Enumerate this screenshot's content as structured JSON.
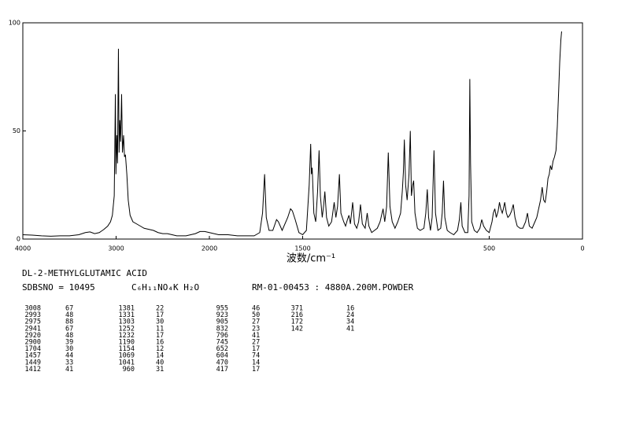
{
  "chart_data": {
    "type": "line",
    "color": "#000000",
    "xlabel": "波数/cm⁻¹",
    "xlim": [
      4000,
      0
    ],
    "x_scale_break": 2000,
    "xticks": [
      4000,
      3000,
      2000,
      1500,
      500,
      0
    ],
    "ylim": [
      0,
      100
    ],
    "yticks": [
      0,
      50,
      100
    ],
    "x": [
      4000,
      3900,
      3800,
      3700,
      3600,
      3500,
      3400,
      3330,
      3280,
      3230,
      3180,
      3130,
      3090,
      3060,
      3040,
      3020,
      3012,
      3008,
      3002,
      2993,
      2985,
      2975,
      2968,
      2960,
      2952,
      2941,
      2932,
      2920,
      2910,
      2900,
      2885,
      2870,
      2850,
      2820,
      2780,
      2740,
      2700,
      2650,
      2600,
      2550,
      2500,
      2450,
      2400,
      2350,
      2300,
      2250,
      2200,
      2150,
      2100,
      2050,
      2000,
      1950,
      1900,
      1850,
      1800,
      1760,
      1730,
      1715,
      1704,
      1695,
      1680,
      1660,
      1640,
      1630,
      1610,
      1580,
      1565,
      1555,
      1540,
      1520,
      1500,
      1480,
      1465,
      1457,
      1453,
      1449,
      1440,
      1430,
      1420,
      1412,
      1405,
      1395,
      1387,
      1381,
      1372,
      1360,
      1345,
      1331,
      1322,
      1313,
      1303,
      1295,
      1280,
      1270,
      1260,
      1252,
      1244,
      1232,
      1222,
      1210,
      1200,
      1190,
      1180,
      1165,
      1154,
      1145,
      1130,
      1115,
      1100,
      1085,
      1069,
      1060,
      1050,
      1041,
      1032,
      1020,
      1005,
      990,
      975,
      966,
      960,
      955,
      948,
      940,
      930,
      923,
      917,
      910,
      905,
      898,
      885,
      870,
      850,
      840,
      832,
      825,
      815,
      806,
      796,
      788,
      775,
      760,
      752,
      745,
      738,
      725,
      710,
      690,
      670,
      660,
      652,
      645,
      630,
      615,
      608,
      604,
      600,
      594,
      580,
      565,
      550,
      540,
      530,
      515,
      500,
      485,
      478,
      470,
      462,
      452,
      445,
      438,
      430,
      424,
      417,
      408,
      400,
      390,
      380,
      371,
      362,
      350,
      335,
      320,
      305,
      295,
      285,
      270,
      255,
      245,
      235,
      225,
      216,
      208,
      200,
      192,
      185,
      178,
      172,
      165,
      158,
      150,
      142,
      135,
      128,
      122,
      116,
      112
    ],
    "values": [
      2,
      1.8,
      1.5,
      1.3,
      1.5,
      1.5,
      2,
      3,
      3.3,
      2.5,
      3,
      4.5,
      6,
      8,
      11,
      20,
      50,
      67,
      30,
      48,
      35,
      88,
      40,
      55,
      45,
      67,
      40,
      48,
      38,
      39,
      30,
      18,
      11,
      8,
      7,
      6,
      5,
      4.5,
      4,
      3,
      2.5,
      2.5,
      2,
      1.5,
      1.5,
      1.5,
      2,
      2.5,
      3.5,
      3.5,
      3,
      2,
      2,
      1.5,
      1.5,
      1.5,
      3,
      12,
      30,
      10,
      4,
      4,
      9,
      8,
      4,
      10,
      14,
      13,
      9,
      3,
      2,
      4,
      25,
      44,
      30,
      33,
      12,
      8,
      22,
      41,
      20,
      10,
      16,
      22,
      10,
      6,
      8,
      17,
      10,
      15,
      30,
      12,
      8,
      6,
      9,
      11,
      7,
      17,
      7,
      5,
      8,
      16,
      7,
      5,
      12,
      6,
      3,
      4,
      5,
      8,
      14,
      8,
      15,
      40,
      15,
      8,
      5,
      8,
      12,
      22,
      31,
      46,
      25,
      18,
      30,
      50,
      20,
      25,
      27,
      12,
      5,
      4,
      5,
      12,
      23,
      10,
      4,
      10,
      41,
      12,
      4,
      5,
      12,
      27,
      10,
      4,
      3,
      2,
      4,
      9,
      17,
      6,
      3,
      3,
      20,
      74,
      35,
      8,
      4,
      3,
      5,
      9,
      6,
      4,
      3,
      8,
      12,
      14,
      10,
      13,
      17,
      14,
      12,
      14,
      17,
      12,
      10,
      11,
      13,
      16,
      10,
      6,
      5,
      5,
      8,
      12,
      6,
      5,
      8,
      10,
      14,
      18,
      24,
      18,
      17,
      22,
      28,
      30,
      34,
      32,
      36,
      38,
      41,
      52,
      68,
      82,
      92,
      96
    ]
  },
  "header": {
    "compound": "DL-2-METHYLGLUTAMIC ACID",
    "sdbsno": "SDBSNO = 10495",
    "formula": "C₆H₁₁NO₄K H₂O",
    "sample": "RM-01-00453 : 4880A.200M.POWDER"
  },
  "peaks": [
    [
      [
        3008,
        67
      ],
      [
        2993,
        48
      ],
      [
        2975,
        88
      ],
      [
        2941,
        67
      ],
      [
        2920,
        48
      ],
      [
        2900,
        39
      ],
      [
        1704,
        30
      ],
      [
        1457,
        44
      ],
      [
        1449,
        33
      ],
      [
        1412,
        41
      ]
    ],
    [
      [
        1381,
        22
      ],
      [
        1331,
        17
      ],
      [
        1303,
        30
      ],
      [
        1252,
        11
      ],
      [
        1232,
        17
      ],
      [
        1190,
        16
      ],
      [
        1154,
        12
      ],
      [
        1069,
        14
      ],
      [
        1041,
        40
      ],
      [
        960,
        31
      ]
    ],
    [
      [
        955,
        46
      ],
      [
        923,
        50
      ],
      [
        905,
        27
      ],
      [
        832,
        23
      ],
      [
        796,
        41
      ],
      [
        745,
        27
      ],
      [
        652,
        17
      ],
      [
        604,
        74
      ],
      [
        470,
        14
      ],
      [
        417,
        17
      ]
    ],
    [
      [
        371,
        16
      ],
      [
        216,
        24
      ],
      [
        172,
        34
      ],
      [
        142,
        41
      ]
    ]
  ]
}
